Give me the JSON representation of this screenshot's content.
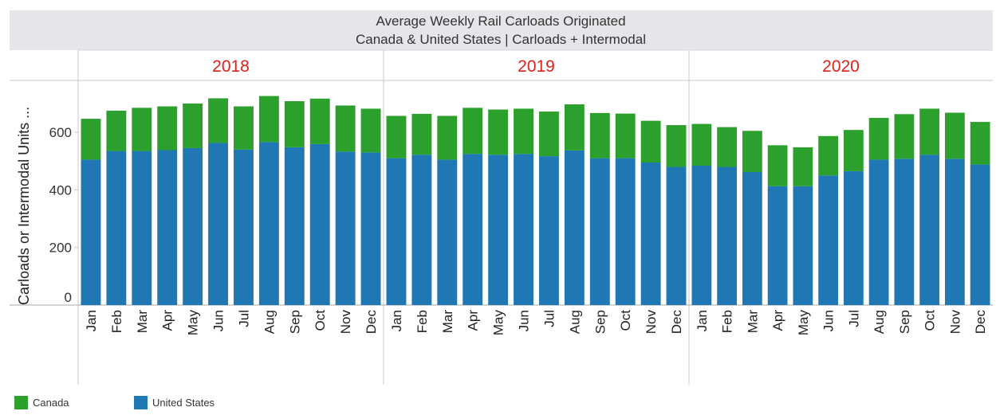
{
  "chart_data": {
    "type": "bar",
    "stacked": true,
    "title": "Average Weekly Rail Carloads Originated",
    "subtitle": "Canada & United States | Carloads + Intermodal",
    "ylabel": "Carloads or Intermodal Units ...",
    "ylim": [
      0,
      780
    ],
    "yticks": [
      0,
      200,
      400,
      600
    ],
    "panels": [
      "2018",
      "2019",
      "2020"
    ],
    "categories": [
      "Jan",
      "Feb",
      "Mar",
      "Apr",
      "May",
      "Jun",
      "Jul",
      "Aug",
      "Sep",
      "Oct",
      "Nov",
      "Dec"
    ],
    "series": [
      {
        "name": "United States",
        "color": "#1f77b4",
        "values": [
          [
            505,
            535,
            535,
            538,
            545,
            563,
            540,
            566,
            548,
            559,
            533,
            530
          ],
          [
            510,
            522,
            505,
            525,
            522,
            525,
            517,
            537,
            510,
            510,
            495,
            480
          ],
          [
            484,
            480,
            462,
            413,
            413,
            450,
            465,
            505,
            508,
            522,
            508,
            488
          ]
        ]
      },
      {
        "name": "Canada",
        "color": "#2ca02c",
        "values": [
          [
            142,
            140,
            150,
            152,
            155,
            155,
            150,
            160,
            160,
            158,
            160,
            152
          ],
          [
            147,
            142,
            152,
            160,
            157,
            157,
            155,
            160,
            157,
            155,
            145,
            145
          ],
          [
            145,
            138,
            143,
            142,
            135,
            137,
            143,
            145,
            155,
            160,
            160,
            148
          ]
        ]
      }
    ],
    "legend": [
      "Canada",
      "United States"
    ]
  }
}
